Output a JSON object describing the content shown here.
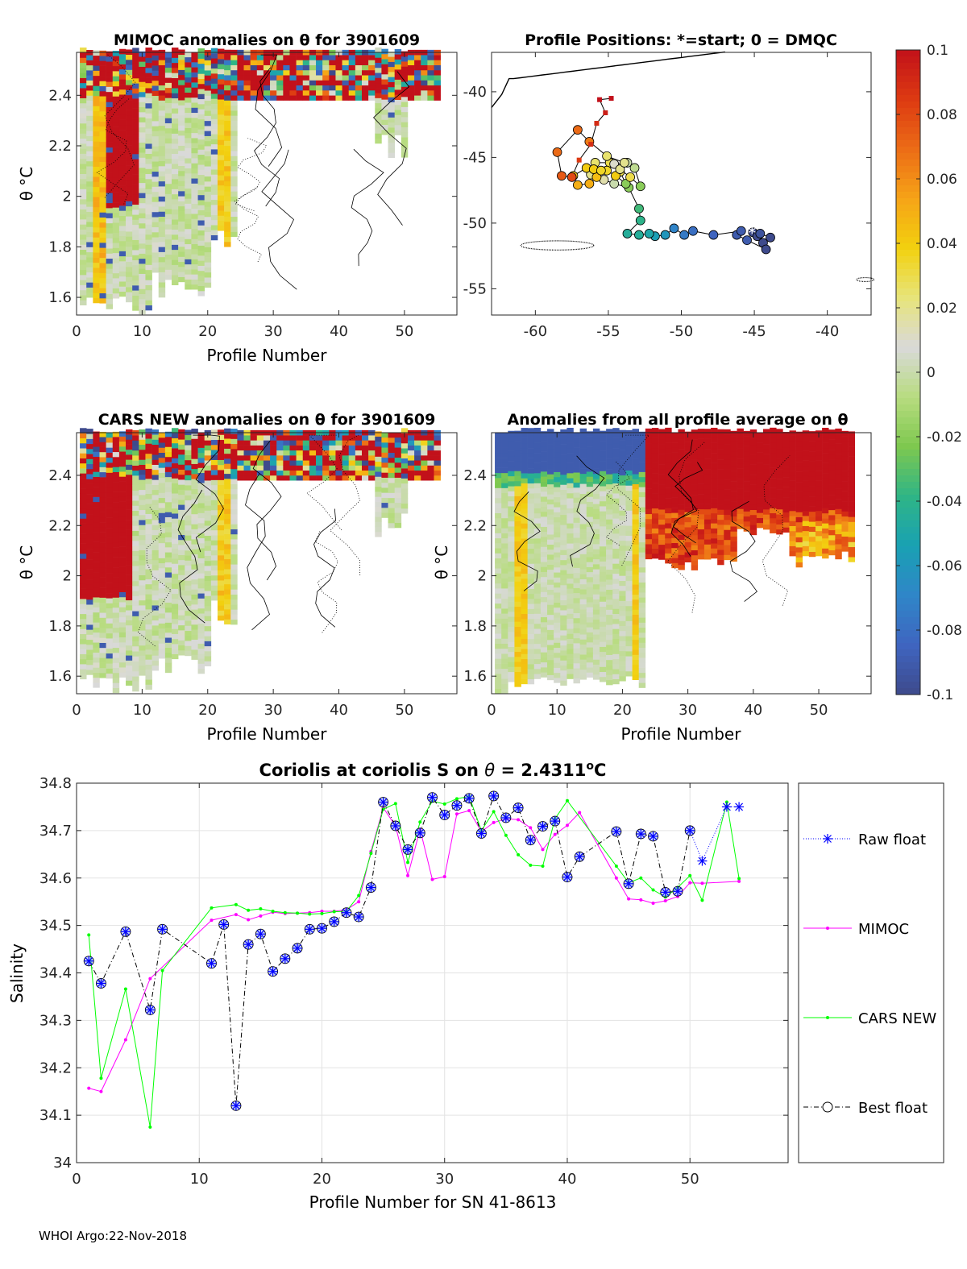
{
  "footer": "WHOI Argo:22-Nov-2018",
  "colorbar": {
    "min": -0.1,
    "max": 0.1,
    "tick_labels": [
      "0.1",
      "0.08",
      "0.06",
      "0.04",
      "0.02",
      "0",
      "-0.02",
      "-0.04",
      "-0.06",
      "-0.08",
      "-0.1"
    ],
    "tick_values": [
      0.1,
      0.08,
      0.06,
      0.04,
      0.02,
      0,
      -0.02,
      -0.04,
      -0.06,
      -0.08,
      -0.1
    ],
    "colormap": [
      "#3e4a8c",
      "#3f65c0",
      "#2f86c8",
      "#19a1b3",
      "#2fb585",
      "#7ec84f",
      "#b8dc80",
      "#d9d9d9",
      "#e7e47a",
      "#f2d10f",
      "#f6a317",
      "#ec6c16",
      "#dd3a12",
      "#c2111a"
    ]
  },
  "chart_data": [
    {
      "id": "mimoc_anom",
      "type": "heatmap",
      "title": "MIMOC anomalies on θ  for 3901609",
      "xlabel": "Profile Number",
      "ylabel": "θ °C",
      "xlim": [
        0,
        58
      ],
      "ylim": [
        1.53,
        2.57
      ],
      "x_tick_labels": [
        "0",
        "10",
        "20",
        "30",
        "40",
        "50"
      ],
      "x_ticks": [
        0,
        10,
        20,
        30,
        40,
        50
      ],
      "y_tick_labels": [
        "1.6",
        "1.8",
        "2",
        "2.2",
        "2.4"
      ],
      "y_ticks": [
        1.6,
        1.8,
        2.0,
        2.2,
        2.4
      ],
      "region_upper_x": [
        1,
        55
      ],
      "region_upper_theta_low": 2.38,
      "region_lower_theta_low": 1.53,
      "seed": 7
    },
    {
      "id": "positions",
      "type": "scatter",
      "title": "Profile Positions: *=start; 0 = DMQC",
      "xlim": [
        -63,
        -37
      ],
      "ylim": [
        -57,
        -37
      ],
      "x_tick_labels": [
        "-60",
        "-55",
        "-50",
        "-45",
        "-40"
      ],
      "x_ticks": [
        -60,
        -55,
        -50,
        -45,
        -40
      ],
      "y_tick_labels": [
        "-40",
        "-45",
        "-50",
        "-55"
      ],
      "y_ticks": [
        -40,
        -45,
        -50,
        -55
      ],
      "track_lon": [
        -45.1,
        -44.8,
        -44.4,
        -43.9,
        -44.6,
        -44.2,
        -45.5,
        -46.2,
        -45.9,
        -47.8,
        -49.2,
        -49.8,
        -50.5,
        -51.1,
        -51.8,
        -52.2,
        -52.9,
        -53.7,
        -52.8,
        -52.9,
        -53.6,
        -54.6,
        -55.3,
        -56.2,
        -55.9,
        -54.9,
        -54.2,
        -53.8,
        -54.5,
        -55.1,
        -56.5,
        -57.4,
        -57.1,
        -56.3,
        -55.8,
        -56.0,
        -55.5,
        -54.6,
        -53.7,
        -53.2,
        -52.8,
        -53.5,
        -54.2,
        -53.9,
        -55.1,
        -56.3,
        -57.1,
        -58.5,
        -58.2,
        -57.5,
        -57.0,
        -56.2,
        -55.8,
        -55.2,
        -55.6,
        -54.8
      ],
      "track_lat": [
        -50.7,
        -51.0,
        -51.5,
        -51.1,
        -50.8,
        -52.0,
        -51.3,
        -50.9,
        -50.6,
        -50.9,
        -50.6,
        -50.9,
        -50.4,
        -50.9,
        -51.0,
        -50.8,
        -50.9,
        -50.8,
        -49.8,
        -48.9,
        -47.3,
        -47.0,
        -46.7,
        -46.3,
        -45.4,
        -45.4,
        -46.1,
        -47.0,
        -46.4,
        -46.0,
        -45.8,
        -46.4,
        -47.1,
        -47.0,
        -46.5,
        -45.9,
        -46.0,
        -45.5,
        -45.4,
        -45.8,
        -47.2,
        -46.5,
        -45.9,
        -45.4,
        -44.9,
        -43.8,
        -42.9,
        -44.6,
        -46.4,
        -46.5,
        -45.2,
        -44.0,
        -42.4,
        -41.6,
        -40.6,
        -40.5
      ],
      "dot_values": [
        -0.1,
        -0.1,
        -0.1,
        -0.1,
        -0.095,
        -0.1,
        -0.09,
        -0.09,
        -0.09,
        -0.085,
        -0.08,
        -0.075,
        -0.07,
        -0.06,
        -0.055,
        -0.05,
        -0.045,
        -0.045,
        -0.04,
        -0.035,
        -0.02,
        0.0,
        0.015,
        0.02,
        0.025,
        0.03,
        0.03,
        -0.02,
        0.04,
        0.035,
        0.04,
        0.045,
        0.05,
        0.05,
        0.045,
        0.04,
        0.035,
        0.01,
        0.0,
        -0.005,
        -0.02,
        0.03,
        0.02,
        0.02,
        0.025,
        0.065,
        0.07,
        0.07,
        0.075,
        0.08,
        0.085,
        0.09,
        0.09,
        0.095,
        0.1,
        0.1
      ],
      "coast_top": {
        "lon_start": -63,
        "lon_end": -47,
        "lat_level": -39
      },
      "islands": [
        {
          "lon": -58.5,
          "lat": -51.7,
          "w": 5,
          "h": 0.7
        },
        {
          "lon": -37.4,
          "lat": -54.3,
          "w": 1.2,
          "h": 0.3
        }
      ]
    },
    {
      "id": "cars_anom",
      "type": "heatmap",
      "title": "CARS NEW anomalies on θ for 3901609",
      "xlabel": "Profile Number",
      "ylabel": "θ °C",
      "xlim": [
        0,
        58
      ],
      "ylim": [
        1.53,
        2.57
      ],
      "x_tick_labels": [
        "0",
        "10",
        "20",
        "30",
        "40",
        "50"
      ],
      "x_ticks": [
        0,
        10,
        20,
        30,
        40,
        50
      ],
      "y_tick_labels": [
        "1.6",
        "1.8",
        "2",
        "2.2",
        "2.4"
      ],
      "y_ticks": [
        1.6,
        1.8,
        2.0,
        2.2,
        2.4
      ],
      "seed": 13
    },
    {
      "id": "avg_anom",
      "type": "heatmap",
      "title": "Anomalies from all profile average on θ",
      "xlabel": "Profile Number",
      "ylabel": "θ °C",
      "xlim": [
        0,
        58
      ],
      "ylim": [
        1.53,
        2.57
      ],
      "x_tick_labels": [
        "0",
        "10",
        "20",
        "30",
        "40",
        "50"
      ],
      "x_ticks": [
        0,
        10,
        20,
        30,
        40,
        50
      ],
      "y_tick_labels": [
        "1.6",
        "1.8",
        "2",
        "2.2",
        "2.4"
      ],
      "y_ticks": [
        1.6,
        1.8,
        2.0,
        2.2,
        2.4
      ],
      "seed": 21
    },
    {
      "id": "salinity",
      "type": "line",
      "title": "Coriolis at coriolis S on θ = 2.4311°C",
      "title_parts": {
        "a": "Coriolis at coriolis S on ",
        "theta": "θ",
        "b": " = 2.4311",
        "sup": "o",
        "c": "C"
      },
      "xlabel": "Profile Number for SN 41-8613",
      "ylabel": "Salinity",
      "xlim": [
        0,
        58
      ],
      "ylim": [
        34.0,
        34.8
      ],
      "x_tick_labels": [
        "0",
        "10",
        "20",
        "30",
        "40",
        "50"
      ],
      "x_ticks": [
        0,
        10,
        20,
        30,
        40,
        50
      ],
      "y_tick_labels": [
        "34",
        "34.1",
        "34.2",
        "34.3",
        "34.4",
        "34.5",
        "34.6",
        "34.7",
        "34.8"
      ],
      "y_ticks": [
        34.0,
        34.1,
        34.2,
        34.3,
        34.4,
        34.5,
        34.6,
        34.7,
        34.8
      ],
      "legend": [
        "Raw float",
        "MIMOC",
        "CARS NEW",
        "Best float"
      ],
      "series": [
        {
          "name": "Best float",
          "color": "#000000",
          "x": [
            1,
            2,
            4,
            6,
            7,
            11,
            12,
            13,
            14,
            15,
            16,
            17,
            18,
            19,
            20,
            21,
            22,
            23,
            24,
            25,
            26,
            27,
            28,
            29,
            30,
            31,
            32,
            33,
            34,
            35,
            36,
            37,
            38,
            39,
            40,
            41,
            44,
            45,
            46,
            47,
            48,
            49,
            50
          ],
          "y": [
            34.425,
            34.378,
            34.487,
            34.322,
            34.492,
            34.42,
            34.502,
            34.12,
            34.46,
            34.482,
            34.403,
            34.43,
            34.452,
            34.492,
            34.494,
            34.508,
            34.527,
            34.518,
            34.58,
            34.76,
            34.71,
            34.66,
            34.695,
            34.77,
            34.733,
            34.753,
            34.768,
            34.694,
            34.773,
            34.727,
            34.748,
            34.68,
            34.709,
            34.72,
            34.602,
            34.645,
            34.698,
            34.588,
            34.693,
            34.688,
            34.57,
            34.572,
            34.7
          ]
        },
        {
          "name": "Raw float",
          "color": "#0000ff",
          "x": [
            50,
            51,
            53,
            54
          ],
          "y": [
            34.7,
            34.636,
            34.75,
            34.75
          ]
        },
        {
          "name": "MIMOC",
          "color": "#ff00ff",
          "x": [
            1,
            2,
            4,
            6,
            11,
            13,
            14,
            15,
            16,
            17,
            18,
            19,
            20,
            21,
            22,
            23,
            24,
            25,
            26,
            27,
            28,
            29,
            30,
            31,
            32,
            33,
            34,
            35,
            36,
            37,
            38,
            39,
            40,
            41,
            44,
            45,
            46,
            47,
            48,
            49,
            50,
            51,
            54
          ],
          "y": [
            34.157,
            34.15,
            34.259,
            34.388,
            34.511,
            34.523,
            34.512,
            34.52,
            34.528,
            34.525,
            34.526,
            34.527,
            34.53,
            34.53,
            34.533,
            34.55,
            34.656,
            34.748,
            34.71,
            34.605,
            34.703,
            34.597,
            34.603,
            34.735,
            34.742,
            34.698,
            34.717,
            34.725,
            34.723,
            34.706,
            34.66,
            34.692,
            34.711,
            34.738,
            34.6,
            34.556,
            34.554,
            34.547,
            34.552,
            34.561,
            34.59,
            34.589,
            34.593
          ]
        },
        {
          "name": "CARS NEW",
          "color": "#00ff00",
          "x": [
            1,
            2,
            4,
            6,
            7,
            11,
            13,
            14,
            15,
            16,
            17,
            18,
            19,
            20,
            21,
            22,
            23,
            24,
            25,
            26,
            27,
            28,
            29,
            30,
            31,
            32,
            33,
            34,
            35,
            36,
            37,
            38,
            39,
            40,
            44,
            45,
            46,
            47,
            48,
            49,
            50,
            51,
            53,
            54
          ],
          "y": [
            34.48,
            34.178,
            34.366,
            34.075,
            34.405,
            34.537,
            34.544,
            34.532,
            34.535,
            34.53,
            34.527,
            34.526,
            34.524,
            34.525,
            34.529,
            34.53,
            34.563,
            34.652,
            34.745,
            34.757,
            34.633,
            34.718,
            34.762,
            34.756,
            34.767,
            34.772,
            34.7,
            34.74,
            34.69,
            34.649,
            34.627,
            34.625,
            34.725,
            34.763,
            34.625,
            34.59,
            34.6,
            34.575,
            34.56,
            34.58,
            34.605,
            34.553,
            34.76,
            34.599
          ]
        }
      ]
    }
  ]
}
